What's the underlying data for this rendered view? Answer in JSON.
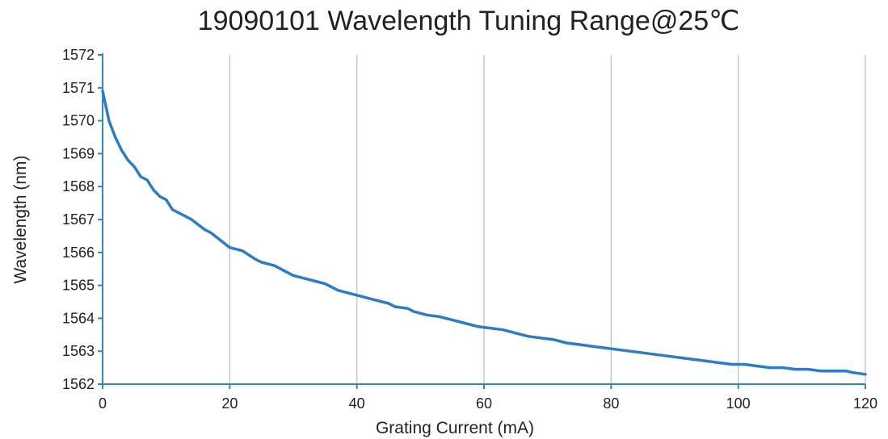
{
  "chart_data": {
    "type": "line",
    "title": "19090101 Wavelength Tuning Range@25℃",
    "xlabel": "Grating Current (mA)",
    "ylabel": "Wavelength (nm)",
    "xlim": [
      0,
      120
    ],
    "ylim": [
      1562,
      1572
    ],
    "xticks": [
      "0",
      "20",
      "40",
      "60",
      "80",
      "100",
      "120"
    ],
    "yticks": [
      "1562",
      "1563",
      "1564",
      "1565",
      "1566",
      "1567",
      "1568",
      "1569",
      "1570",
      "1571",
      "1572"
    ],
    "grid": true,
    "legend": "none",
    "colors": {
      "line": "#2e7cc4",
      "grid": "#c8c8c8",
      "axis": "#2e86c9"
    },
    "series": [
      {
        "x": [
          0,
          1,
          2,
          3,
          4,
          5,
          6,
          7,
          8,
          9,
          10,
          11,
          12,
          13,
          14,
          15,
          16,
          17,
          18,
          19,
          20,
          22,
          24,
          25,
          27,
          28,
          30,
          31,
          33,
          35,
          36,
          37,
          39,
          40,
          42,
          43,
          45,
          46,
          48,
          49,
          51,
          53,
          55,
          57,
          59,
          61,
          63,
          65,
          67,
          69,
          71,
          73,
          75,
          77,
          79,
          81,
          83,
          85,
          87,
          89,
          91,
          93,
          95,
          97,
          99,
          101,
          103,
          105,
          107,
          109,
          111,
          113,
          115,
          117,
          118,
          120
        ],
        "y": [
          1570.9,
          1570.0,
          1569.5,
          1569.1,
          1568.8,
          1568.6,
          1568.3,
          1568.2,
          1567.9,
          1567.7,
          1567.6,
          1567.3,
          1567.2,
          1567.1,
          1567.0,
          1566.85,
          1566.7,
          1566.6,
          1566.45,
          1566.3,
          1566.15,
          1566.05,
          1565.8,
          1565.7,
          1565.6,
          1565.5,
          1565.3,
          1565.25,
          1565.15,
          1565.05,
          1564.95,
          1564.85,
          1564.75,
          1564.7,
          1564.6,
          1564.55,
          1564.45,
          1564.35,
          1564.3,
          1564.2,
          1564.1,
          1564.05,
          1563.95,
          1563.85,
          1563.75,
          1563.7,
          1563.65,
          1563.55,
          1563.45,
          1563.4,
          1563.35,
          1563.25,
          1563.2,
          1563.15,
          1563.1,
          1563.05,
          1563.0,
          1562.95,
          1562.9,
          1562.85,
          1562.8,
          1562.75,
          1562.7,
          1562.65,
          1562.6,
          1562.6,
          1562.55,
          1562.5,
          1562.5,
          1562.45,
          1562.45,
          1562.4,
          1562.4,
          1562.4,
          1562.35,
          1562.3
        ]
      }
    ]
  }
}
